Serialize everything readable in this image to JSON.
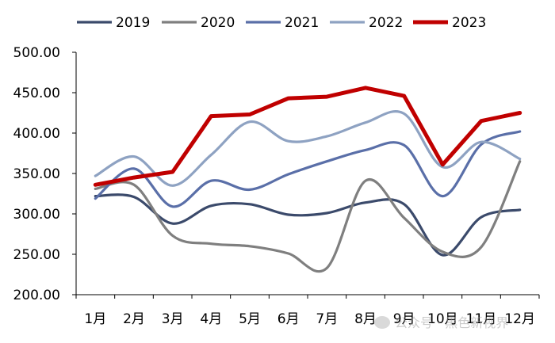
{
  "chart_data": {
    "type": "line",
    "title": "",
    "xlabel": "",
    "ylabel": "",
    "categories": [
      "1月",
      "2月",
      "3月",
      "4月",
      "5月",
      "6月",
      "7月",
      "8月",
      "9月",
      "10月",
      "11月",
      "12月"
    ],
    "ylim": [
      200,
      500
    ],
    "yticks": [
      "200.00",
      "250.00",
      "300.00",
      "350.00",
      "400.00",
      "450.00",
      "500.00"
    ],
    "grid": false,
    "legend_position": "top",
    "series": [
      {
        "name": "2019",
        "color": "#3b4a6b",
        "width": 3.2,
        "values": [
          322,
          321,
          288,
          310,
          312,
          299,
          301,
          314,
          312,
          249,
          296,
          305
        ]
      },
      {
        "name": "2020",
        "color": "#7f7f7f",
        "width": 3.2,
        "values": [
          331,
          336,
          273,
          263,
          260,
          251,
          233,
          341,
          295,
          253,
          259,
          365
        ]
      },
      {
        "name": "2021",
        "color": "#5a6fa8",
        "width": 3.2,
        "values": [
          319,
          356,
          309,
          341,
          330,
          349,
          365,
          379,
          385,
          322,
          386,
          402
        ]
      },
      {
        "name": "2022",
        "color": "#8ea2c2",
        "width": 3.2,
        "values": [
          347,
          371,
          335,
          373,
          414,
          390,
          396,
          413,
          424,
          358,
          389,
          368
        ]
      },
      {
        "name": "2023",
        "color": "#c00000",
        "width": 5,
        "values": [
          336,
          345,
          352,
          421,
          423,
          443,
          445,
          456,
          446,
          361,
          415,
          425
        ]
      }
    ]
  },
  "watermark": "公众号 · 黑色新视界"
}
